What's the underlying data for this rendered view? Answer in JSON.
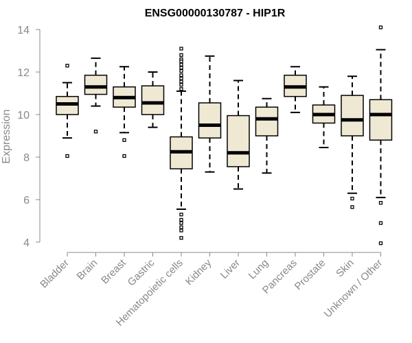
{
  "chart_data": {
    "type": "box",
    "title": "ENSG00000130787 - HIP1R",
    "xlabel": "",
    "ylabel": "Expression",
    "ylim": [
      4,
      14
    ],
    "yticks": [
      4,
      6,
      8,
      10,
      12,
      14
    ],
    "box_fill": "#efe9d4",
    "categories": [
      "Bladder",
      "Brain",
      "Breast",
      "Gastric",
      "Hematopoietic cells",
      "Kidney",
      "Liver",
      "Lung",
      "Pancreas",
      "Prostate",
      "Skin",
      "Unknown / Other"
    ],
    "boxes": [
      {
        "name": "Bladder",
        "lower_whisker": 8.9,
        "q1": 10.0,
        "median": 10.5,
        "q3": 10.85,
        "upper_whisker": 11.5,
        "outliers": [
          12.3,
          8.05
        ]
      },
      {
        "name": "Brain",
        "lower_whisker": 10.4,
        "q1": 10.95,
        "median": 11.3,
        "q3": 11.85,
        "upper_whisker": 12.65,
        "outliers": [
          9.2
        ]
      },
      {
        "name": "Breast",
        "lower_whisker": 9.15,
        "q1": 10.35,
        "median": 10.8,
        "q3": 11.3,
        "upper_whisker": 12.25,
        "outliers": [
          8.8,
          8.05
        ]
      },
      {
        "name": "Gastric",
        "lower_whisker": 9.4,
        "q1": 10.0,
        "median": 10.55,
        "q3": 11.35,
        "upper_whisker": 12.0,
        "outliers": []
      },
      {
        "name": "Hematopoietic cells",
        "lower_whisker": 5.55,
        "q1": 7.45,
        "median": 8.25,
        "q3": 8.95,
        "upper_whisker": 11.1,
        "outliers": [
          13.1,
          12.8,
          12.6,
          12.5,
          12.35,
          12.2,
          12.05,
          11.85,
          11.7,
          11.55,
          11.4,
          11.2,
          5.3,
          5.05,
          4.9,
          4.7,
          4.55,
          4.2
        ]
      },
      {
        "name": "Kidney",
        "lower_whisker": 7.3,
        "q1": 8.9,
        "median": 9.5,
        "q3": 10.55,
        "upper_whisker": 12.75,
        "outliers": []
      },
      {
        "name": "Liver",
        "lower_whisker": 6.5,
        "q1": 7.55,
        "median": 8.2,
        "q3": 9.95,
        "upper_whisker": 11.6,
        "outliers": []
      },
      {
        "name": "Lung",
        "lower_whisker": 7.25,
        "q1": 9.0,
        "median": 9.8,
        "q3": 10.35,
        "upper_whisker": 10.75,
        "outliers": []
      },
      {
        "name": "Pancreas",
        "lower_whisker": 10.1,
        "q1": 10.85,
        "median": 11.3,
        "q3": 11.85,
        "upper_whisker": 12.25,
        "outliers": []
      },
      {
        "name": "Prostate",
        "lower_whisker": 8.45,
        "q1": 9.6,
        "median": 10.0,
        "q3": 10.45,
        "upper_whisker": 11.3,
        "outliers": []
      },
      {
        "name": "Skin",
        "lower_whisker": 6.3,
        "q1": 9.0,
        "median": 9.75,
        "q3": 10.9,
        "upper_whisker": 11.8,
        "outliers": [
          6.05,
          5.65
        ]
      },
      {
        "name": "Unknown / Other",
        "lower_whisker": 6.1,
        "q1": 8.8,
        "median": 10.0,
        "q3": 10.7,
        "upper_whisker": 13.05,
        "outliers": [
          14.1,
          5.85,
          4.9,
          3.95
        ]
      }
    ]
  }
}
